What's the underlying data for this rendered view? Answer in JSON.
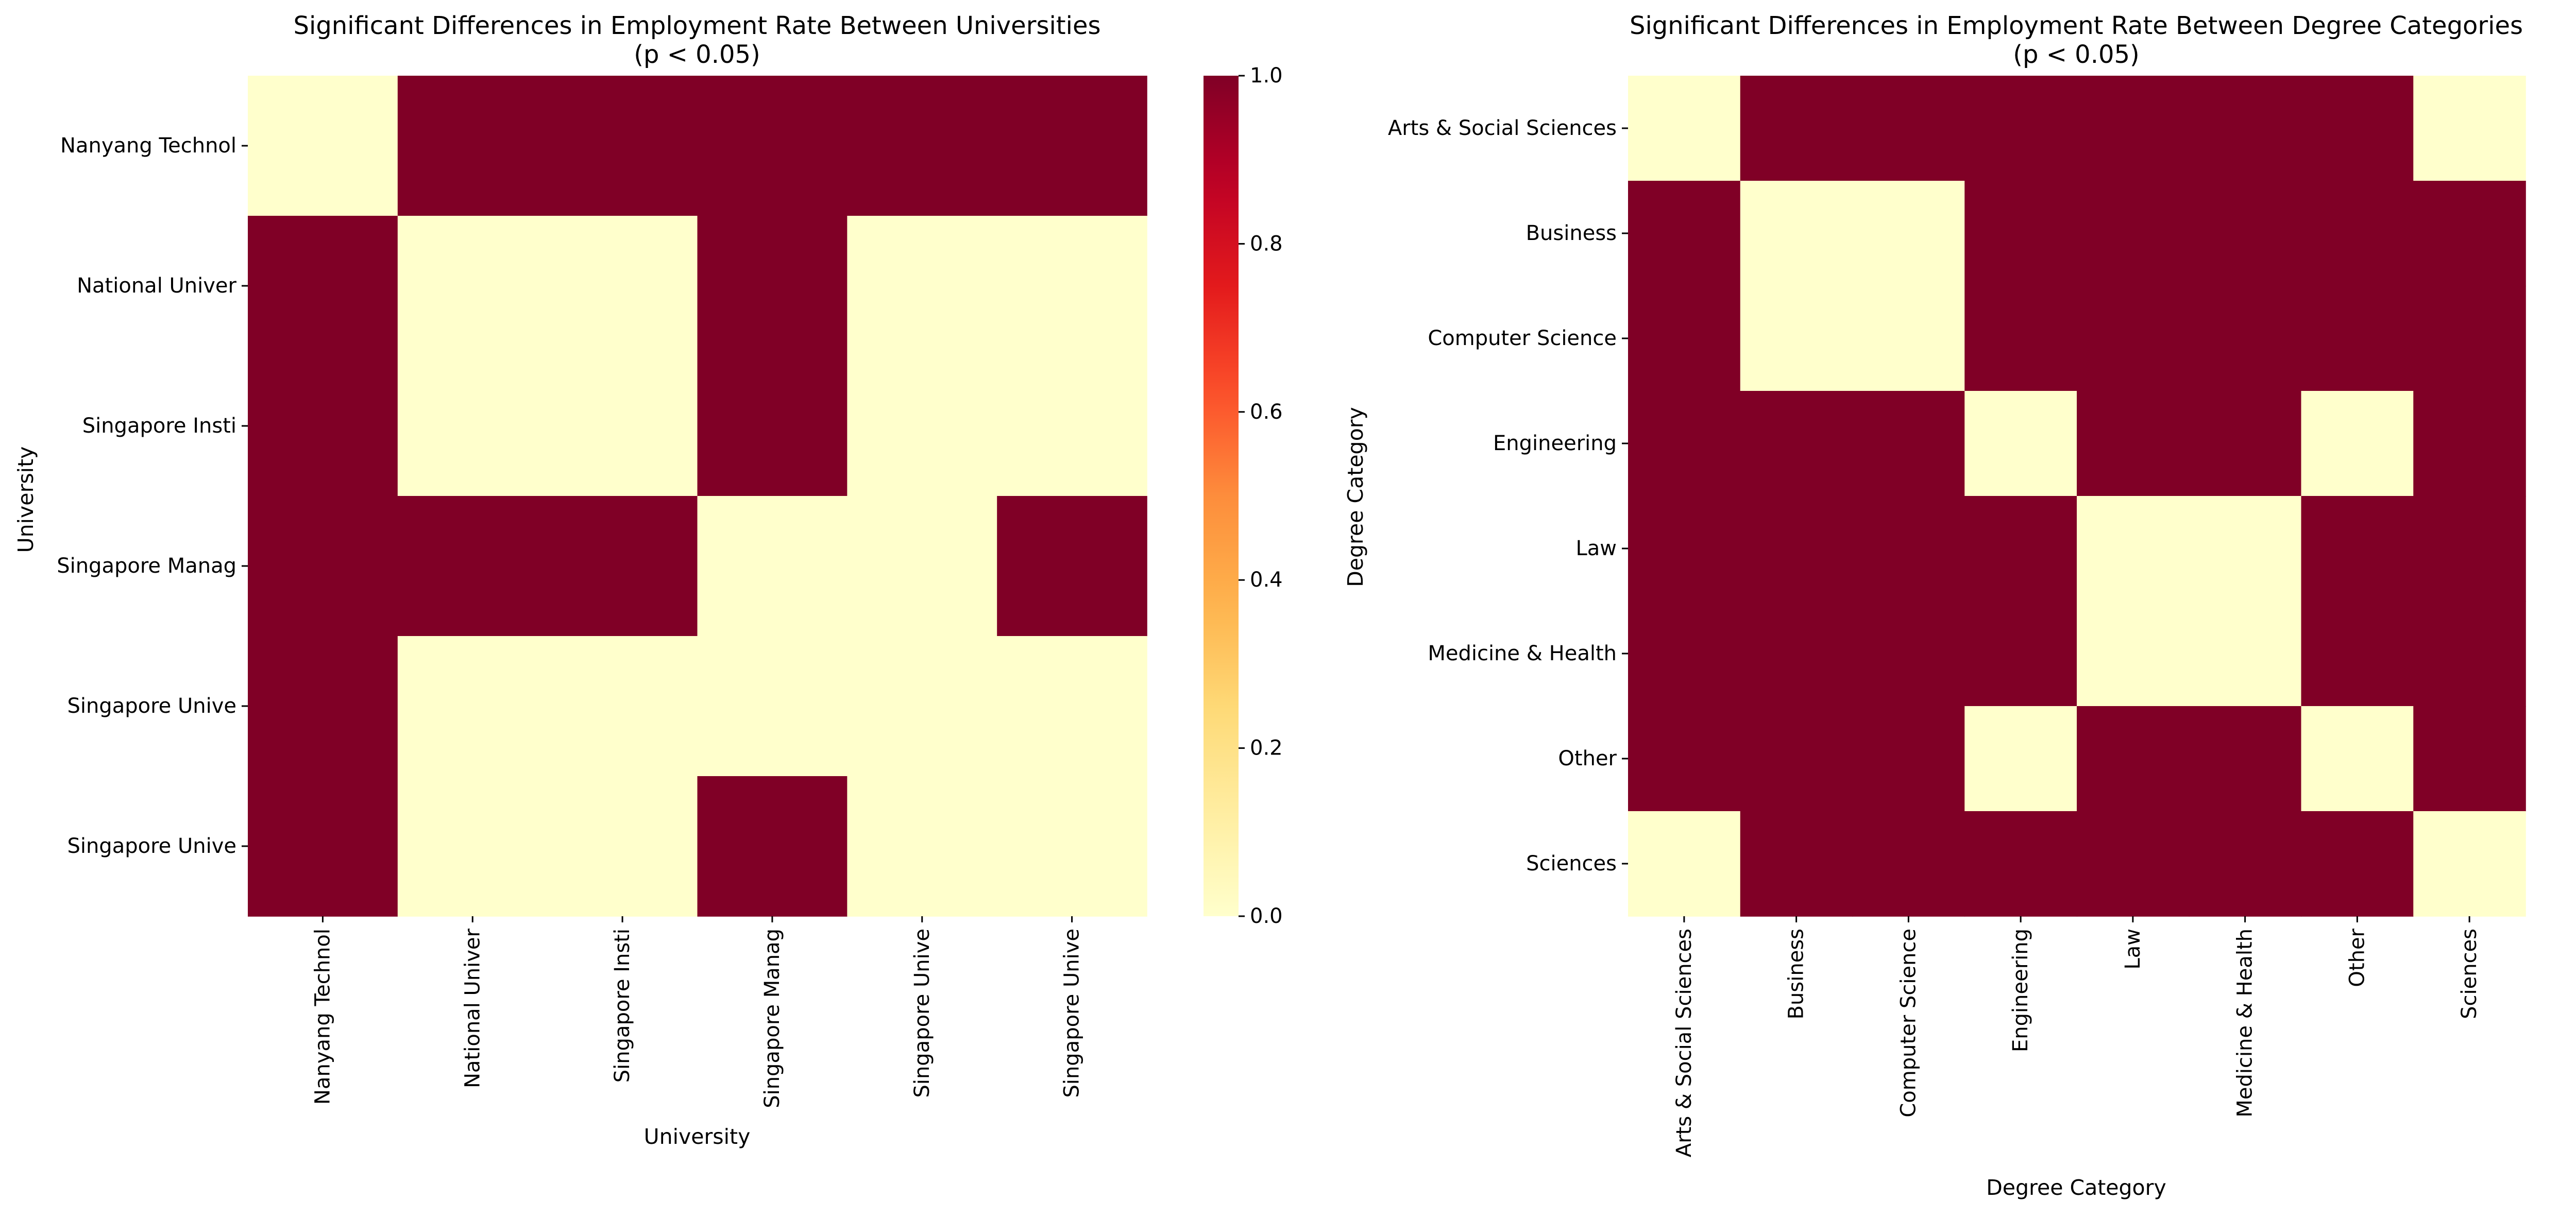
{
  "colormap": {
    "name": "YlOrRd",
    "stops": [
      "#ffffcc",
      "#ffeda0",
      "#fed976",
      "#feb24c",
      "#fd8d3c",
      "#fc4e2a",
      "#e31a1c",
      "#bd0026",
      "#800026"
    ]
  },
  "chart_data": [
    {
      "type": "heatmap",
      "title": "Significant Differences in Employment Rate Between Universities",
      "subtitle": "(p < 0.05)",
      "xlabel": "University",
      "ylabel": "University",
      "x_labels": [
        "Nanyang Technol",
        "National Univer",
        "Singapore Insti",
        "Singapore Manag",
        "Singapore Unive",
        "Singapore Unive"
      ],
      "y_labels": [
        "Nanyang Technol",
        "National Univer",
        "Singapore Insti",
        "Singapore Manag",
        "Singapore Unive",
        "Singapore Unive"
      ],
      "values": [
        [
          0,
          1,
          1,
          1,
          1,
          1
        ],
        [
          1,
          0,
          0,
          1,
          0,
          0
        ],
        [
          1,
          0,
          0,
          1,
          0,
          0
        ],
        [
          1,
          1,
          1,
          0,
          0,
          1
        ],
        [
          1,
          0,
          0,
          0,
          0,
          0
        ],
        [
          1,
          0,
          0,
          1,
          0,
          0
        ]
      ],
      "colorbar": {
        "min": 0,
        "max": 1,
        "ticks": [
          "0.0",
          "0.2",
          "0.4",
          "0.6",
          "0.8",
          "1.0"
        ]
      }
    },
    {
      "type": "heatmap",
      "title": "Significant Differences in Employment Rate Between Degree Categories",
      "subtitle": "(p < 0.05)",
      "xlabel": "Degree Category",
      "ylabel": "Degree Category",
      "x_labels": [
        "Arts & Social Sciences",
        "Business",
        "Computer Science",
        "Engineering",
        "Law",
        "Medicine & Health",
        "Other",
        "Sciences"
      ],
      "y_labels": [
        "Arts & Social Sciences",
        "Business",
        "Computer Science",
        "Engineering",
        "Law",
        "Medicine & Health",
        "Other",
        "Sciences"
      ],
      "values": [
        [
          0,
          1,
          1,
          1,
          1,
          1,
          1,
          0
        ],
        [
          1,
          0,
          0,
          1,
          1,
          1,
          1,
          1
        ],
        [
          1,
          0,
          0,
          1,
          1,
          1,
          1,
          1
        ],
        [
          1,
          1,
          1,
          0,
          1,
          1,
          0,
          1
        ],
        [
          1,
          1,
          1,
          1,
          0,
          0,
          1,
          1
        ],
        [
          1,
          1,
          1,
          1,
          0,
          0,
          1,
          1
        ],
        [
          1,
          1,
          1,
          0,
          1,
          1,
          0,
          1
        ],
        [
          0,
          1,
          1,
          1,
          1,
          1,
          1,
          0
        ]
      ],
      "colorbar": {
        "min": 0,
        "max": 1,
        "ticks": [
          "0.0",
          "0.2",
          "0.4",
          "0.6",
          "0.8",
          "1.0"
        ]
      }
    }
  ]
}
